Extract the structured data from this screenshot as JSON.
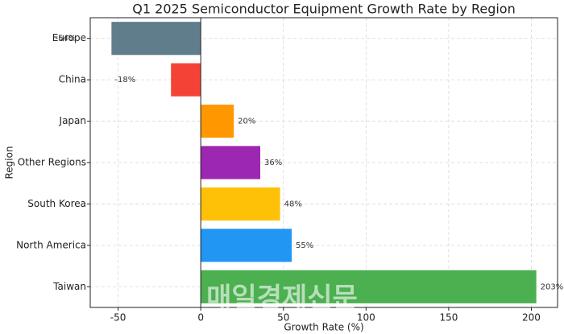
{
  "chart_data": {
    "type": "barh",
    "title": "Q1 2025 Semiconductor Equipment Growth Rate by Region",
    "xlabel": "Growth Rate (%)",
    "ylabel": "Region",
    "categories": [
      "Europe",
      "China",
      "Japan",
      "Other Regions",
      "South Korea",
      "North America",
      "Taiwan"
    ],
    "values": [
      -54,
      -18,
      20,
      36,
      48,
      55,
      203
    ],
    "value_labels": [
      "-54%",
      "-18%",
      "20%",
      "36%",
      "48%",
      "55%",
      "203%"
    ],
    "colors": [
      "#607d8b",
      "#f44336",
      "#ff9800",
      "#9c27b0",
      "#ffc107",
      "#2196f3",
      "#4caf50"
    ],
    "xlim": [
      -66.85,
      215.85
    ],
    "xticks": [
      -50,
      0,
      50,
      100,
      150,
      200
    ],
    "grid": true,
    "watermark": "매일경제신문"
  }
}
